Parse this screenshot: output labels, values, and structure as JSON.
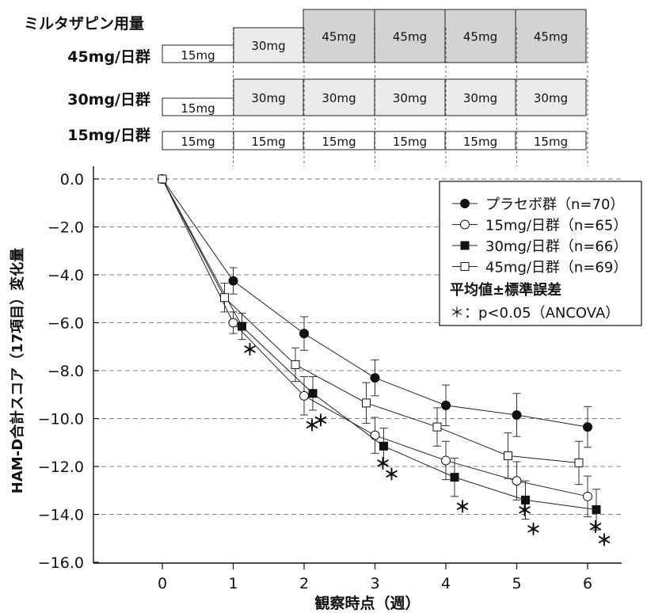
{
  "dose_schedule": {
    "title": "ミルタザピン用量",
    "rows": [
      {
        "label": "45mg/日群",
        "cells": [
          "15mg",
          "30mg",
          "45mg",
          "45mg",
          "45mg",
          "45mg"
        ],
        "shades": [
          "#ffffff",
          "#ebebeb",
          "#d3d3d3",
          "#d3d3d3",
          "#d3d3d3",
          "#d3d3d3"
        ]
      },
      {
        "label": "30mg/日群",
        "cells": [
          "15mg",
          "30mg",
          "30mg",
          "30mg",
          "30mg",
          "30mg"
        ],
        "shades": [
          "#ffffff",
          "#ebebeb",
          "#ebebeb",
          "#ebebeb",
          "#ebebeb",
          "#ebebeb"
        ]
      },
      {
        "label": "15mg/日群",
        "cells": [
          "15mg",
          "15mg",
          "15mg",
          "15mg",
          "15mg",
          "15mg"
        ],
        "shades": [
          "#ffffff",
          "#ffffff",
          "#ffffff",
          "#ffffff",
          "#ffffff",
          "#ffffff"
        ]
      }
    ]
  },
  "chart_data": {
    "type": "line",
    "title": "",
    "xlabel": "観察時点（週）",
    "ylabel": "HAM-D合計スコア（17項目）変化量",
    "x": [
      0,
      1,
      2,
      3,
      4,
      5,
      6
    ],
    "x_tick_labels": [
      "0",
      "1",
      "2",
      "3",
      "4",
      "5",
      "6"
    ],
    "y_ticks": [
      0,
      -2,
      -4,
      -6,
      -8,
      -10,
      -12,
      -14,
      -16
    ],
    "y_tick_labels": [
      "0.0",
      "−2.0",
      "−4.0",
      "−6.0",
      "−8.0",
      "−10.0",
      "−12.0",
      "−14.0",
      "−16.0"
    ],
    "xlim": [
      -1.1,
      7
    ],
    "ylim": [
      -16,
      0.5
    ],
    "grid": "horizontal dashed",
    "legend_position": "top-right",
    "series": [
      {
        "name": "プラセボ群（n=70）",
        "marker": "filled-circle",
        "values": [
          0,
          -4.25,
          -6.45,
          -8.3,
          -9.45,
          -9.85,
          -10.35
        ],
        "errors": [
          0,
          0.55,
          0.7,
          0.75,
          0.85,
          0.9,
          0.85
        ]
      },
      {
        "name": "15mg/日群（n=65）",
        "marker": "open-circle",
        "values": [
          0,
          -6.0,
          -9.05,
          -10.7,
          -11.75,
          -12.6,
          -13.25
        ],
        "errors": [
          0,
          0.45,
          0.8,
          0.75,
          0.8,
          0.8,
          0.85
        ]
      },
      {
        "name": "30mg/日群（n=66）",
        "marker": "filled-square",
        "values": [
          0,
          -6.15,
          -8.95,
          -11.15,
          -12.45,
          -13.4,
          -13.8
        ],
        "errors": [
          0,
          0.55,
          0.7,
          0.75,
          0.8,
          0.8,
          0.85
        ]
      },
      {
        "name": "45mg/日群（n=69）",
        "marker": "open-square",
        "values": [
          0,
          -4.95,
          -7.75,
          -9.35,
          -10.35,
          -11.55,
          -11.85
        ],
        "errors": [
          0,
          0.6,
          0.7,
          0.85,
          0.8,
          0.95,
          0.9
        ]
      }
    ],
    "legend_note": "平均値±標準誤差",
    "significance_note": "＊：p<0.05（ANCOVA）",
    "significance_symbol": "＊",
    "significance_marks": [
      {
        "series": "30mg/日群（n=66）",
        "x": 1
      },
      {
        "series": "15mg/日群（n=65）",
        "x": 2
      },
      {
        "series": "30mg/日群（n=66）",
        "x": 2
      },
      {
        "series": "15mg/日群（n=65）",
        "x": 3
      },
      {
        "series": "30mg/日群（n=66）",
        "x": 3
      },
      {
        "series": "30mg/日群（n=66）",
        "x": 4
      },
      {
        "series": "15mg/日群（n=65）",
        "x": 5
      },
      {
        "series": "30mg/日群（n=66）",
        "x": 5
      },
      {
        "series": "15mg/日群（n=65）",
        "x": 6
      },
      {
        "series": "30mg/日群（n=66）",
        "x": 6
      }
    ]
  }
}
